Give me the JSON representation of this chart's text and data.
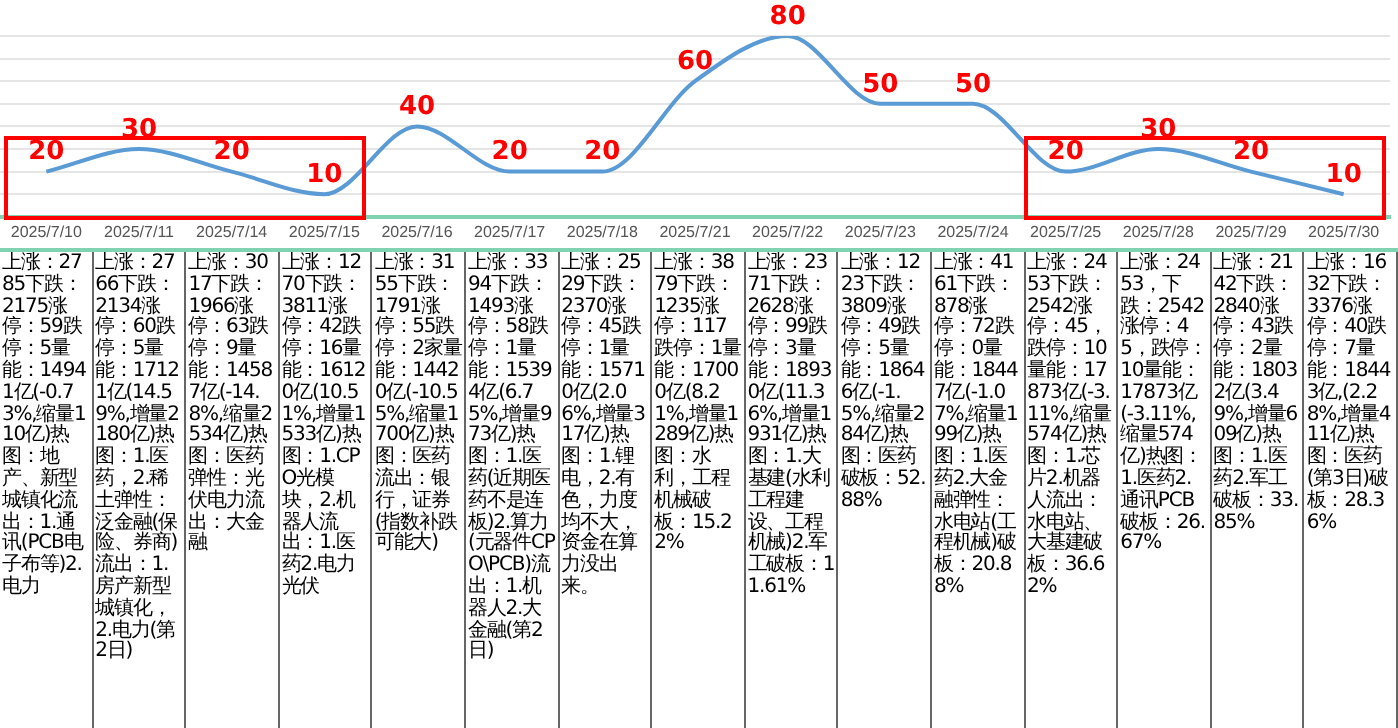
{
  "chart_data": {
    "type": "line",
    "categories": [
      "2025/7/10",
      "2025/7/11",
      "2025/7/14",
      "2025/7/15",
      "2025/7/16",
      "2025/7/17",
      "2025/7/18",
      "2025/7/21",
      "2025/7/22",
      "2025/7/23",
      "2025/7/24",
      "2025/7/25",
      "2025/7/28",
      "2025/7/29",
      "2025/7/30"
    ],
    "series": [
      {
        "color": "#5b9bd5",
        "values": [
          20,
          30,
          20,
          10,
          40,
          20,
          20,
          60,
          80,
          50,
          50,
          20,
          30,
          20,
          10
        ]
      }
    ],
    "ylim": [
      0,
      80
    ],
    "yticks": [
      {
        "value": 0,
        "label": null
      },
      {
        "value": 10,
        "label": null
      },
      {
        "value": 20,
        "label": null
      },
      {
        "value": 30,
        "label": null
      },
      {
        "value": 40,
        "label": null
      },
      {
        "value": 50,
        "label": null
      },
      {
        "value": 60,
        "label": null
      },
      {
        "value": 70,
        "label": null
      },
      {
        "value": 80,
        "label": null
      }
    ],
    "tick_labels": "x",
    "grid": "y",
    "legend": false,
    "marker": "none",
    "line_style": "solid",
    "data_labels": true,
    "annotations": [
      "上涨：2785下跌：2175涨停：59跌停：5量能：14941亿(-0.73%,缩量110亿)热图：地产、新型城镇化流出：1.通讯(PCB电子布等)2.电力",
      "上涨：2766下跌：2134涨停：60跌停：5量能：17121亿(14.59%,增量2180亿)热图：1.医药，2.稀土弹性：泛金融(保险、券商)流出：1.房产新型城镇化，2.电力(第2日)",
      "上涨：3017下跌：1966涨停：63跌停：9量能：14587亿(-14.8%,缩量2534亿)热图：医药弹性：光伏电力流出：大金融",
      "上涨：1270下跌：3811涨停：42跌停：16量能：16120亿(10.51%,增量1533亿)热图：1.CPO光模块，2.机器人流出：1.医药2.电力光伏",
      "上涨：3155下跌：1791涨停：55跌停：2家量能：14420亿(-10.55%,缩量1700亿)热图：医药流出：银行，证券(指数补跌可能大)",
      "上涨：3394下跌：1493涨停：58跌停：1量能：15394亿(6.75%,增量973亿)热图：1.医药(近期医药不是连板)2.算力(元器件CPO\\PCB)流出：1.机器人2.大金融(第2日)",
      "上涨：2529下跌：2370涨停：45跌停：1量能：15710亿(2.06%,增量317亿)热图：1.锂电，2.有色，力度均不大，资金在算力没出来。",
      "上涨：3879下跌：1235涨停：117跌停：1量能：17000亿(8.21%,增量1289亿)热图：水利，工程机械破板：15.22%",
      "上涨：2371下跌：2628涨停：99跌停：3量能：18930亿(11.36%,增量1931亿)热图：1.大基建(水利工程建设、工程机械)2.军工破板：11.61%",
      "上涨：1223下跌：3809涨停：49跌停：5量能：18646亿(-1.5%,缩量284亿)热图：医药破板：52.88%",
      "上涨：4161下跌：878涨停：72跌停：0量能：18447亿(-1.07%,缩量199亿)热图：1.医药2.大金融弹性：水电站(工程机械)破板：20.88%",
      "上涨：2453下跌：2542涨停：45，跌停：10量能：17873亿(-3.11%,缩量574亿)热图：1.芯片2.机器人流出：水电站、大基建破板：36.62%",
      "上涨：2453，下跌：2542涨停：45，跌停：10量能：17873亿(-3.11%,缩量574亿)热图：1.医药2.通讯PCB破板：26.67%",
      "上涨：2142下跌：2840涨停：43跌停：2量能：18032亿(3.49%,增量609亿)热图：1.医药2.军工破板：33.85%",
      "上涨：1632下跌：3376涨停：40跌停：7量能：18443亿,(2.28%,增量411亿)热图：医药(第3日)破板：28.36%"
    ]
  }
}
